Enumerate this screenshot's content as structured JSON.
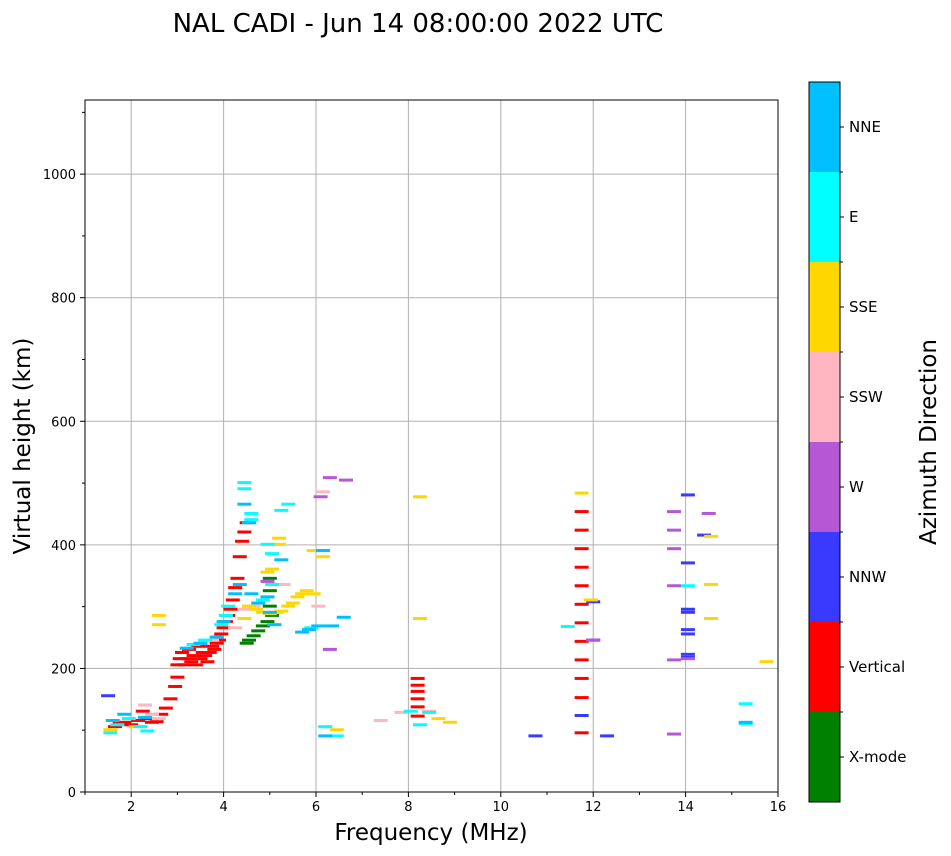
{
  "chart_data": {
    "type": "scatter",
    "title": "NAL CADI - Jun 14 08:00:00 2022 UTC",
    "xlabel": "Frequency (MHz)",
    "ylabel": "Virtual height (km)",
    "xlim": [
      1,
      16
    ],
    "ylim": [
      0,
      1120
    ],
    "xticks": [
      "2",
      "4",
      "6",
      "8",
      "10",
      "12",
      "14",
      "16"
    ],
    "yticks": [
      "0",
      "200",
      "400",
      "600",
      "800",
      "1000"
    ],
    "grid": true,
    "colorbar": {
      "label": "Azimuth Direction",
      "categories": [
        {
          "name": "X-mode",
          "color": "#008000"
        },
        {
          "name": "Vertical",
          "color": "#ff0000"
        },
        {
          "name": "NNW",
          "color": "#3a3aff"
        },
        {
          "name": "W",
          "color": "#b657d6"
        },
        {
          "name": "SSW",
          "color": "#ffb6c1"
        },
        {
          "name": "SSE",
          "color": "#ffd700"
        },
        {
          "name": "E",
          "color": "#00ffff"
        },
        {
          "name": "NNE",
          "color": "#00bfff"
        }
      ]
    },
    "series": [
      {
        "name": "Vertical",
        "points": [
          [
            1.65,
            105
          ],
          [
            1.75,
            110
          ],
          [
            1.85,
            112
          ],
          [
            2.0,
            108
          ],
          [
            2.15,
            115
          ],
          [
            2.25,
            130
          ],
          [
            2.35,
            118
          ],
          [
            2.45,
            112
          ],
          [
            2.55,
            113
          ],
          [
            2.65,
            125
          ],
          [
            2.75,
            135
          ],
          [
            2.85,
            150
          ],
          [
            2.95,
            170
          ],
          [
            3.0,
            185
          ],
          [
            3.0,
            205
          ],
          [
            3.05,
            215
          ],
          [
            3.1,
            225
          ],
          [
            3.15,
            205
          ],
          [
            3.2,
            215
          ],
          [
            3.25,
            230
          ],
          [
            3.3,
            210
          ],
          [
            3.35,
            220
          ],
          [
            3.4,
            205
          ],
          [
            3.45,
            235
          ],
          [
            3.5,
            215
          ],
          [
            3.55,
            225
          ],
          [
            3.6,
            220
          ],
          [
            3.65,
            210
          ],
          [
            3.7,
            225
          ],
          [
            3.75,
            235
          ],
          [
            3.8,
            230
          ],
          [
            3.85,
            240
          ],
          [
            3.9,
            245
          ],
          [
            3.95,
            255
          ],
          [
            4.0,
            265
          ],
          [
            4.05,
            275
          ],
          [
            4.1,
            285
          ],
          [
            4.15,
            295
          ],
          [
            4.2,
            310
          ],
          [
            4.25,
            330
          ],
          [
            4.3,
            345
          ],
          [
            4.35,
            380
          ],
          [
            4.4,
            405
          ],
          [
            4.45,
            420
          ],
          [
            4.5,
            435
          ],
          [
            11.75,
            95
          ],
          [
            11.75,
            152
          ],
          [
            11.75,
            183
          ],
          [
            11.75,
            213
          ],
          [
            11.75,
            243
          ],
          [
            11.75,
            273
          ],
          [
            11.75,
            303
          ],
          [
            11.75,
            333
          ],
          [
            11.75,
            363
          ],
          [
            11.75,
            393
          ],
          [
            11.75,
            423
          ],
          [
            11.75,
            453
          ],
          [
            8.2,
            122
          ],
          [
            8.2,
            137
          ],
          [
            8.2,
            150
          ],
          [
            8.2,
            162
          ],
          [
            8.2,
            172
          ],
          [
            8.2,
            183
          ]
        ]
      },
      {
        "name": "X-mode",
        "points": [
          [
            4.55,
            245
          ],
          [
            4.65,
            252
          ],
          [
            4.75,
            260
          ],
          [
            4.85,
            268
          ],
          [
            4.95,
            275
          ],
          [
            5.05,
            285
          ],
          [
            5.0,
            300
          ],
          [
            5.0,
            325
          ],
          [
            5.0,
            345
          ],
          [
            4.5,
            240
          ]
        ]
      },
      {
        "name": "NNW",
        "points": [
          [
            1.5,
            155
          ],
          [
            10.75,
            90
          ],
          [
            12.3,
            90
          ],
          [
            11.75,
            123
          ],
          [
            12.0,
            245
          ],
          [
            12.0,
            307
          ],
          [
            14.05,
            480
          ],
          [
            14.05,
            370
          ],
          [
            14.05,
            295
          ],
          [
            14.05,
            290
          ],
          [
            14.05,
            262
          ],
          [
            14.05,
            255
          ],
          [
            14.05,
            222
          ],
          [
            14.05,
            217
          ],
          [
            14.4,
            415
          ]
        ]
      },
      {
        "name": "W",
        "points": [
          [
            6.3,
            508
          ],
          [
            6.65,
            504
          ],
          [
            6.1,
            477
          ],
          [
            6.3,
            230
          ],
          [
            13.75,
            453
          ],
          [
            13.75,
            423
          ],
          [
            13.75,
            393
          ],
          [
            13.75,
            333
          ],
          [
            13.75,
            213
          ],
          [
            13.75,
            93
          ],
          [
            14.5,
            450
          ],
          [
            14.05,
            215
          ],
          [
            12.0,
            245
          ],
          [
            4.95,
            340
          ]
        ]
      },
      {
        "name": "SSW",
        "points": [
          [
            2.3,
            140
          ],
          [
            2.45,
            125
          ],
          [
            2.6,
            118
          ],
          [
            3.75,
            245
          ],
          [
            4.25,
            265
          ],
          [
            4.45,
            295
          ],
          [
            4.65,
            300
          ],
          [
            5.3,
            335
          ],
          [
            7.4,
            115
          ],
          [
            7.85,
            128
          ],
          [
            8.45,
            130
          ],
          [
            6.05,
            300
          ],
          [
            6.15,
            485
          ]
        ]
      },
      {
        "name": "SSE",
        "points": [
          [
            1.55,
            100
          ],
          [
            2.1,
            105
          ],
          [
            2.6,
            270
          ],
          [
            2.6,
            285
          ],
          [
            4.45,
            280
          ],
          [
            4.55,
            300
          ],
          [
            4.7,
            295
          ],
          [
            4.85,
            290
          ],
          [
            5.0,
            288
          ],
          [
            5.15,
            290
          ],
          [
            5.25,
            292
          ],
          [
            5.4,
            300
          ],
          [
            5.5,
            305
          ],
          [
            5.6,
            315
          ],
          [
            5.7,
            320
          ],
          [
            5.8,
            325
          ],
          [
            5.95,
            320
          ],
          [
            5.2,
            410
          ],
          [
            5.2,
            400
          ],
          [
            5.95,
            390
          ],
          [
            6.15,
            380
          ],
          [
            6.45,
            100
          ],
          [
            8.25,
            477
          ],
          [
            8.25,
            280
          ],
          [
            8.65,
            118
          ],
          [
            8.9,
            112
          ],
          [
            11.95,
            310
          ],
          [
            11.75,
            483
          ],
          [
            14.55,
            413
          ],
          [
            14.55,
            335
          ],
          [
            14.55,
            280
          ],
          [
            15.75,
            210
          ],
          [
            5.05,
            360
          ],
          [
            4.95,
            355
          ]
        ]
      },
      {
        "name": "E",
        "points": [
          [
            1.55,
            95
          ],
          [
            1.7,
            108
          ],
          [
            1.95,
            118
          ],
          [
            2.2,
            105
          ],
          [
            2.35,
            98
          ],
          [
            3.35,
            238
          ],
          [
            3.6,
            245
          ],
          [
            3.95,
            270
          ],
          [
            4.05,
            285
          ],
          [
            4.1,
            300
          ],
          [
            4.45,
            500
          ],
          [
            4.45,
            490
          ],
          [
            4.6,
            450
          ],
          [
            4.6,
            440
          ],
          [
            4.85,
            310
          ],
          [
            5.05,
            335
          ],
          [
            5.25,
            455
          ],
          [
            5.4,
            465
          ],
          [
            5.9,
            265
          ],
          [
            6.2,
            105
          ],
          [
            6.45,
            90
          ],
          [
            8.05,
            130
          ],
          [
            8.25,
            108
          ],
          [
            8.45,
            128
          ],
          [
            11.45,
            267
          ],
          [
            14.05,
            333
          ],
          [
            15.3,
            142
          ],
          [
            15.3,
            110
          ],
          [
            4.95,
            400
          ],
          [
            5.05,
            385
          ]
        ]
      },
      {
        "name": "NNE",
        "points": [
          [
            1.6,
            115
          ],
          [
            1.85,
            125
          ],
          [
            2.3,
            120
          ],
          [
            3.2,
            232
          ],
          [
            3.5,
            240
          ],
          [
            3.85,
            250
          ],
          [
            4.0,
            275
          ],
          [
            4.45,
            465
          ],
          [
            4.55,
            435
          ],
          [
            4.6,
            320
          ],
          [
            4.75,
            305
          ],
          [
            4.95,
            315
          ],
          [
            5.0,
            290
          ],
          [
            5.1,
            270
          ],
          [
            5.25,
            375
          ],
          [
            5.7,
            258
          ],
          [
            5.85,
            262
          ],
          [
            6.05,
            268
          ],
          [
            6.2,
            90
          ],
          [
            6.35,
            268
          ],
          [
            6.6,
            282
          ],
          [
            6.15,
            390
          ],
          [
            15.3,
            112
          ],
          [
            4.35,
            335
          ],
          [
            4.25,
            320
          ]
        ]
      }
    ]
  }
}
